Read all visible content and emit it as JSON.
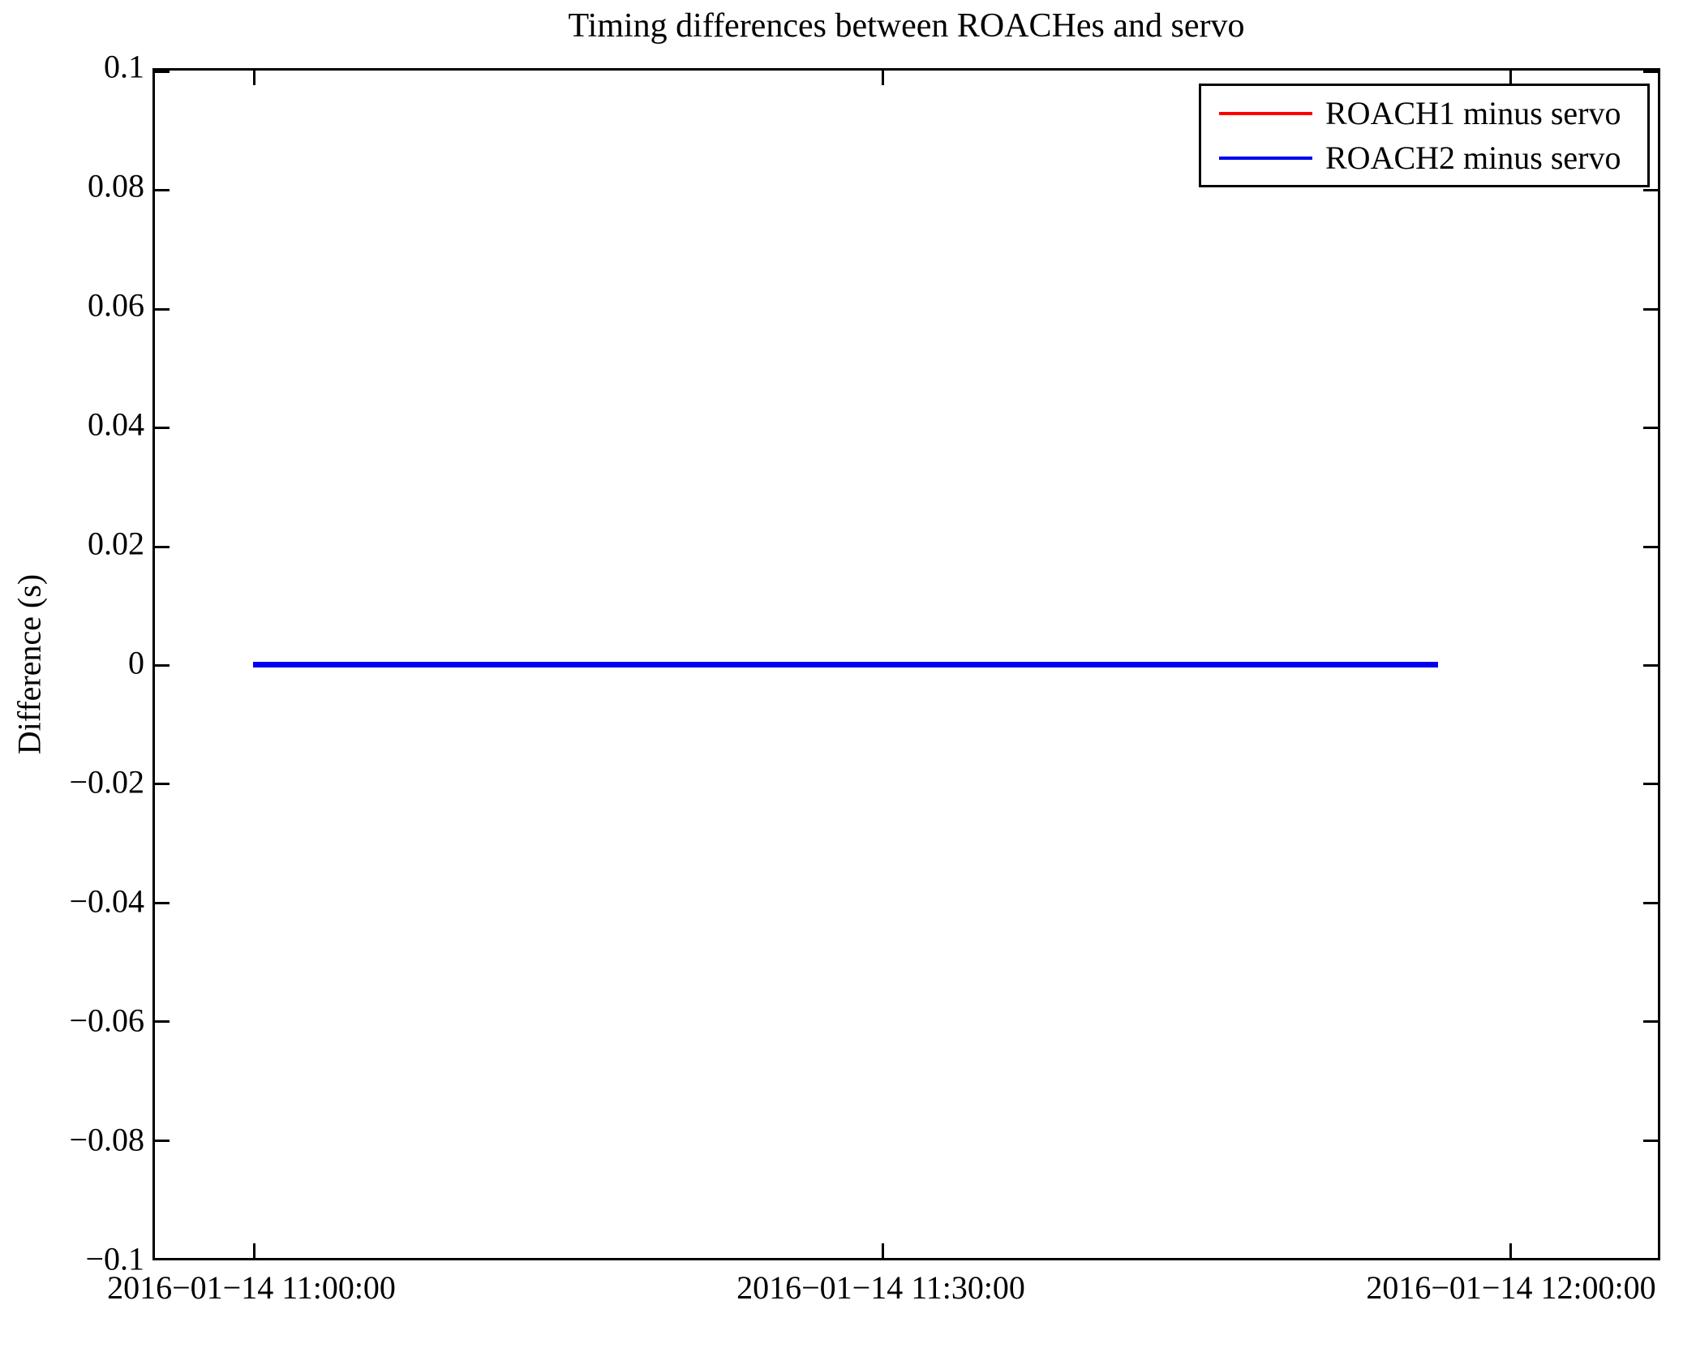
{
  "figure": {
    "background": "#ffffff",
    "text_color": "#000000"
  },
  "chart_data": {
    "type": "line",
    "title": "Timing differences between ROACHes and servo",
    "xlabel": "",
    "ylabel": "Difference (s)",
    "grid": false,
    "legend_position": "upper right",
    "y_axis": {
      "min": -0.1,
      "max": 0.1,
      "tick_step": 0.02,
      "tick_labels": [
        "0.1",
        "0.08",
        "0.06",
        "0.04",
        "0.02",
        "0",
        "−0.02",
        "−0.04",
        "−0.06",
        "−0.08",
        "−0.1"
      ]
    },
    "x_axis": {
      "unit": "minutes since 2016-01-14 11:00:00",
      "min": -4.7,
      "max": 67.1,
      "ticks": [
        {
          "value": 0,
          "label": "2016−01−14 11:00:00"
        },
        {
          "value": 30,
          "label": "2016−01−14 11:30:00"
        },
        {
          "value": 60,
          "label": "2016−01−14 12:00:00"
        }
      ]
    },
    "series": [
      {
        "name": "ROACH1 minus servo",
        "color": "#ff0000",
        "x": [
          0,
          56.6
        ],
        "y": [
          0,
          0
        ]
      },
      {
        "name": "ROACH2 minus servo",
        "color": "#0000f0",
        "x": [
          0,
          56.6
        ],
        "y": [
          0,
          0
        ]
      }
    ]
  }
}
